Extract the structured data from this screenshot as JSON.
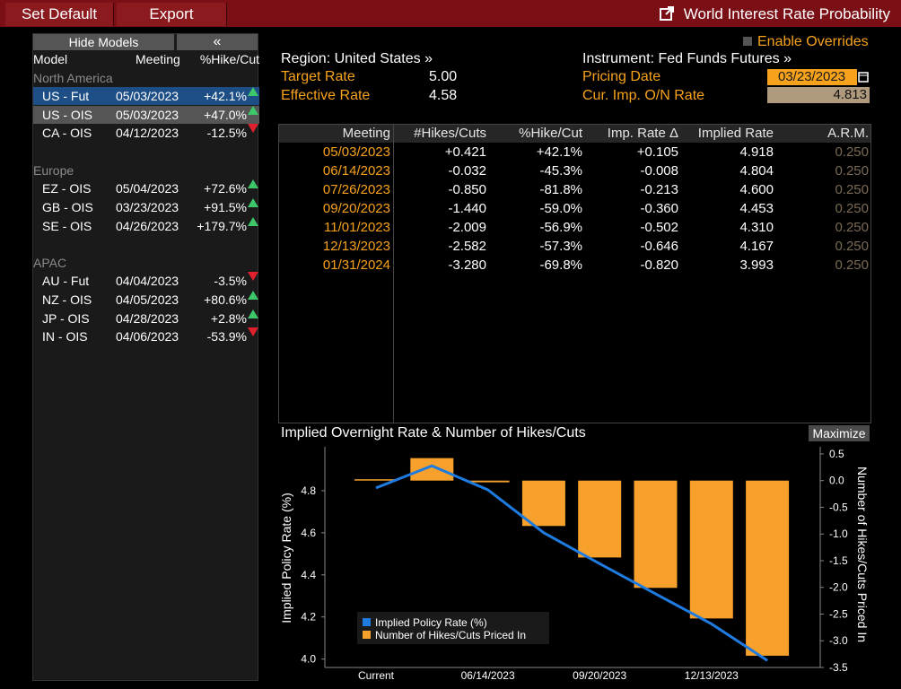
{
  "topbar": {
    "set_default": "Set Default",
    "export": "Export",
    "title": "World Interest Rate Probability"
  },
  "left": {
    "hide_models": "Hide Models",
    "collapse": "«",
    "headers": {
      "model": "Model",
      "meeting": "Meeting",
      "pct": "%Hike/Cut"
    },
    "groups": [
      {
        "name": "North America",
        "rows": [
          {
            "model": "US - Fut",
            "meeting": "05/03/2023",
            "pct": "+42.1%",
            "dir": "up",
            "state": "selected"
          },
          {
            "model": "US - OIS",
            "meeting": "05/03/2023",
            "pct": "+47.0%",
            "dir": "up",
            "state": "highlight"
          },
          {
            "model": "CA - OIS",
            "meeting": "04/12/2023",
            "pct": "-12.5%",
            "dir": "down",
            "state": ""
          }
        ]
      },
      {
        "name": "Europe",
        "rows": [
          {
            "model": "EZ - OIS",
            "meeting": "05/04/2023",
            "pct": "+72.6%",
            "dir": "up",
            "state": ""
          },
          {
            "model": "GB - OIS",
            "meeting": "03/23/2023",
            "pct": "+91.5%",
            "dir": "up",
            "state": ""
          },
          {
            "model": "SE - OIS",
            "meeting": "04/26/2023",
            "pct": "+179.7%",
            "dir": "up",
            "state": ""
          }
        ]
      },
      {
        "name": "APAC",
        "rows": [
          {
            "model": "AU - Fut",
            "meeting": "04/04/2023",
            "pct": "-3.5%",
            "dir": "down",
            "state": ""
          },
          {
            "model": "NZ - OIS",
            "meeting": "04/05/2023",
            "pct": "+80.6%",
            "dir": "up",
            "state": ""
          },
          {
            "model": "JP - OIS",
            "meeting": "04/28/2023",
            "pct": "+2.8%",
            "dir": "up",
            "state": ""
          },
          {
            "model": "IN - OIS",
            "meeting": "04/06/2023",
            "pct": "-53.9%",
            "dir": "down",
            "state": ""
          }
        ]
      }
    ]
  },
  "info": {
    "enable_overrides": "Enable Overrides",
    "region": "Region: United States »",
    "instrument": "Instrument: Fed Funds Futures »",
    "target_rate_label": "Target Rate",
    "target_rate_value": "5.00",
    "effective_rate_label": "Effective Rate",
    "effective_rate_value": "4.58",
    "pricing_date_label": "Pricing Date",
    "pricing_date_value": "03/23/2023",
    "cur_imp_label": "Cur. Imp. O/N Rate",
    "cur_imp_value": "4.813"
  },
  "table": {
    "headers": [
      "Meeting",
      "#Hikes/Cuts",
      "%Hike/Cut",
      "Imp. Rate Δ",
      "Implied Rate",
      "A.R.M."
    ],
    "rows": [
      [
        "05/03/2023",
        "+0.421",
        "+42.1%",
        "+0.105",
        "4.918",
        "0.250"
      ],
      [
        "06/14/2023",
        "-0.032",
        "-45.3%",
        "-0.008",
        "4.804",
        "0.250"
      ],
      [
        "07/26/2023",
        "-0.850",
        "-81.8%",
        "-0.213",
        "4.600",
        "0.250"
      ],
      [
        "09/20/2023",
        "-1.440",
        "-59.0%",
        "-0.360",
        "4.453",
        "0.250"
      ],
      [
        "11/01/2023",
        "-2.009",
        "-56.9%",
        "-0.502",
        "4.310",
        "0.250"
      ],
      [
        "12/13/2023",
        "-2.582",
        "-57.3%",
        "-0.646",
        "4.167",
        "0.250"
      ],
      [
        "01/31/2024",
        "-3.280",
        "-69.8%",
        "-0.820",
        "3.993",
        "0.250"
      ]
    ]
  },
  "chart_panel": {
    "title": "Implied Overnight Rate & Number of Hikes/Cuts",
    "maximize": "Maximize"
  },
  "chart_data": {
    "type": "bar",
    "categories": [
      "Current",
      "05/03/2023",
      "06/14/2023",
      "07/26/2023",
      "09/20/2023",
      "11/01/2023",
      "12/13/2023",
      "01/31/2024"
    ],
    "x_tick_labels": [
      "Current",
      "06/14/2023",
      "09/20/2023",
      "12/13/2023"
    ],
    "series": [
      {
        "name": "Implied Policy Rate (%)",
        "type": "line",
        "axis": "left",
        "color": "#1e7be0",
        "values": [
          4.813,
          4.918,
          4.804,
          4.6,
          4.453,
          4.31,
          4.167,
          3.993
        ]
      },
      {
        "name": "Number of Hikes/Cuts Priced In",
        "type": "bar",
        "axis": "right",
        "color": "#f7a12c",
        "values": [
          0,
          0.421,
          -0.032,
          -0.85,
          -1.44,
          -2.009,
          -2.582,
          -3.28
        ]
      }
    ],
    "ylabel_left": "Implied Policy Rate (%)",
    "ylabel_right": "Number of Hikes/Cuts Priced In",
    "ylim_left": [
      3.96,
      5.0
    ],
    "yticks_left": [
      "4.0",
      "4.2",
      "4.4",
      "4.6",
      "4.8"
    ],
    "ylim_right": [
      -3.5,
      0.6
    ],
    "yticks_right": [
      "0.5",
      "0.0",
      "-0.5",
      "-1.0",
      "-1.5",
      "-2.0",
      "-2.5",
      "-3.0",
      "-3.5"
    ],
    "legend_position": "bottom-left",
    "grid": false
  },
  "colors": {
    "accent_orange": "#f7a21c",
    "topbar_red": "#7a1016",
    "selected_row": "#1d4f86",
    "up_green": "#3ec66b",
    "down_red": "#e0202d"
  }
}
